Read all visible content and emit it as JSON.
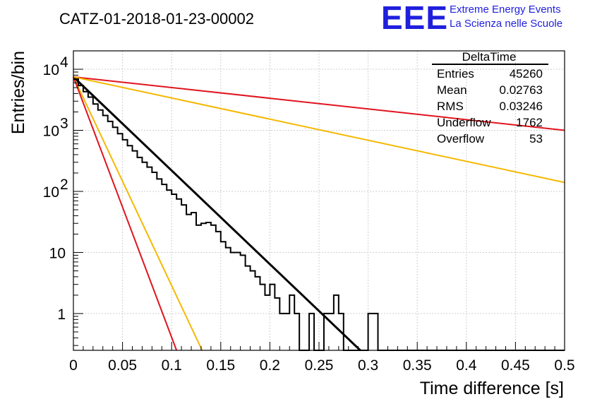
{
  "header": {
    "run_title": "CATZ-01-2018-01-23-00002",
    "logo_text": "EEE",
    "logo_line1": "Extreme Energy Events",
    "logo_line2": "La Scienza nelle Scuole"
  },
  "stats_box": {
    "name": "DeltaTime",
    "rows": [
      {
        "label": "Entries",
        "value": "45260"
      },
      {
        "label": "Mean",
        "value": "0.02763"
      },
      {
        "label": "RMS",
        "value": "0.03246"
      },
      {
        "label": "Underflow",
        "value": "1762"
      },
      {
        "label": "Overflow",
        "value": "53"
      }
    ]
  },
  "colors": {
    "histogram": "#000000",
    "grid": "#cfcfcf",
    "red_fit": "#e0141e",
    "orange_fit": "#f5b800",
    "black_fit": "#000000"
  },
  "chart_data": {
    "type": "line",
    "title": "",
    "xlabel": "Time difference [s]",
    "ylabel": "Entries/bin",
    "xlim": [
      0,
      0.5
    ],
    "ylim": [
      0.25,
      20000
    ],
    "y_scale": "log",
    "grid": true,
    "x_ticks": [
      "0",
      "0.05",
      "0.1",
      "0.15",
      "0.2",
      "0.25",
      "0.3",
      "0.35",
      "0.4",
      "0.45",
      "0.5"
    ],
    "x_tick_values": [
      0,
      0.05,
      0.1,
      0.15,
      0.2,
      0.25,
      0.3,
      0.35,
      0.4,
      0.45,
      0.5
    ],
    "y_ticks": [
      {
        "value": 1,
        "base": "1",
        "exp": ""
      },
      {
        "value": 10,
        "base": "10",
        "exp": ""
      },
      {
        "value": 100,
        "base": "10",
        "exp": "2"
      },
      {
        "value": 1000,
        "base": "10",
        "exp": "3"
      },
      {
        "value": 10000,
        "base": "10",
        "exp": "4"
      }
    ],
    "histogram": {
      "bin_width": 0.005,
      "x_start": 0,
      "counts": [
        6900,
        5400,
        4300,
        3500,
        2700,
        2150,
        1750,
        1400,
        1120,
        880,
        700,
        560,
        460,
        360,
        300,
        250,
        205,
        160,
        130,
        105,
        90,
        75,
        60,
        42,
        45,
        28,
        30,
        31,
        28,
        22,
        15,
        12,
        10,
        10,
        9,
        6,
        5,
        4,
        3,
        2,
        3,
        1.8,
        1,
        1,
        2,
        1,
        0,
        0,
        1,
        0,
        0,
        1,
        1,
        2,
        1,
        0,
        0,
        0,
        0,
        0,
        1,
        1,
        0,
        0,
        0,
        0,
        0,
        0,
        0,
        0,
        0,
        0,
        0,
        0,
        0,
        0,
        0,
        0,
        0,
        0,
        0,
        0,
        0,
        0,
        0,
        0,
        0,
        0,
        0,
        0,
        0,
        0,
        0,
        0,
        0,
        0,
        0,
        0,
        0,
        0
      ]
    },
    "series": [
      {
        "color": "black",
        "x": [
          0,
          0.292
        ],
        "y": [
          7500,
          0.25
        ]
      },
      {
        "color": "red",
        "x": [
          0,
          0.5
        ],
        "y": [
          7500,
          1000
        ]
      },
      {
        "color": "orange",
        "x": [
          0,
          0.5
        ],
        "y": [
          7500,
          140
        ]
      },
      {
        "color": "orange",
        "x": [
          0,
          0.131
        ],
        "y": [
          7500,
          0.25
        ]
      },
      {
        "color": "red",
        "x": [
          0,
          0.105
        ],
        "y": [
          7500,
          0.25
        ]
      }
    ]
  }
}
